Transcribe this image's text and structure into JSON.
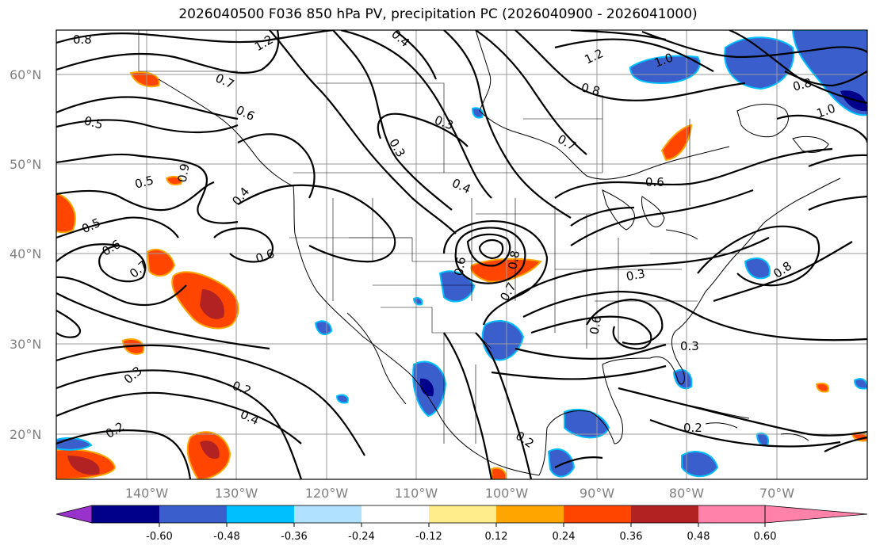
{
  "title": "2026040500 F036 850 hPa PV, precipitation PC (2026040900 - 2026041000)",
  "lat_labels": [
    "60°N",
    "50°N",
    "40°N",
    "30°N",
    "20°N"
  ],
  "lon_labels": [
    "140°W",
    "130°W",
    "120°W",
    "110°W",
    "100°W",
    "90°W",
    "80°W",
    "70°W"
  ],
  "contour_labels": [
    "0.8",
    "1.2",
    "0.4",
    "1.2",
    "1.0",
    "0.7",
    "0.6",
    "0.5",
    "0.8",
    "0.3",
    "0.7",
    "0.6",
    "0.5",
    "0.4",
    "0.6",
    "0.7",
    "0.6",
    "0.5",
    "0.3",
    "0.2",
    "0.2",
    "0.4",
    "0.9",
    "0.6",
    "0.4",
    "0.3",
    "0.6",
    "0.3",
    "0.8",
    "0.2",
    "0.2",
    "1.0",
    "0.8",
    "0.7",
    "0.8",
    "0.3"
  ],
  "colorbar": {
    "ticks": [
      "-0.60",
      "-0.48",
      "-0.36",
      "-0.24",
      "-0.12",
      "0.12",
      "0.24",
      "0.36",
      "0.48",
      "0.60"
    ],
    "colors": [
      "#9932cc",
      "#00008b",
      "#3a5fcd",
      "#00bfff",
      "#b0e2ff",
      "#ffffff",
      "#ffec8b",
      "#ffa500",
      "#ff4500",
      "#b22222",
      "#ff82ab"
    ]
  },
  "shading_colors": {
    "neg_strong": "#00008b",
    "neg_mid": "#3a5fcd",
    "neg_light": "#00bfff",
    "pos_light": "#ffa500",
    "pos_mid": "#ff4500",
    "pos_strong": "#b22222"
  }
}
